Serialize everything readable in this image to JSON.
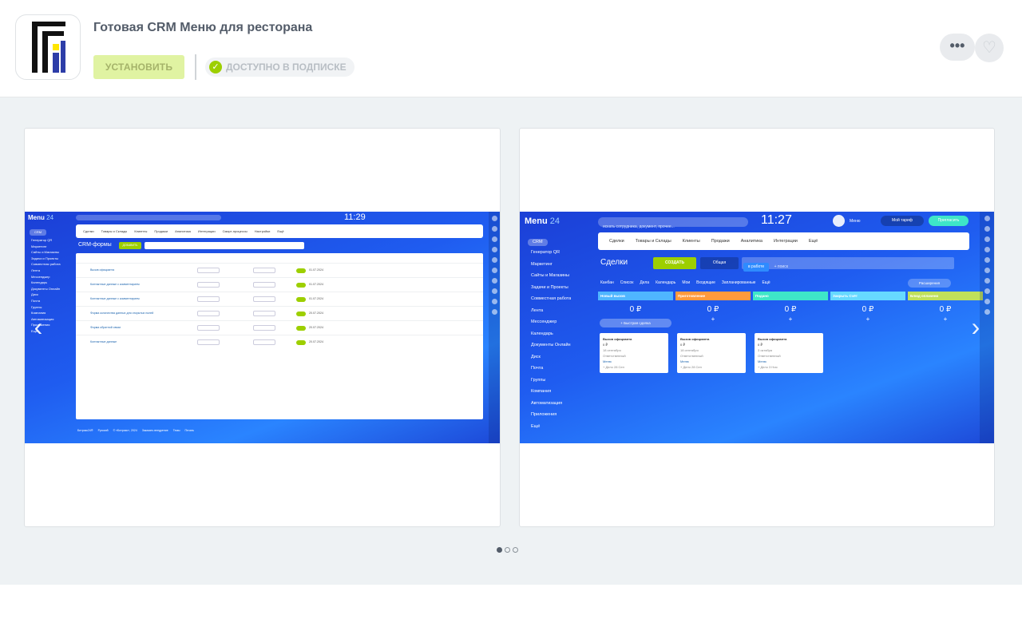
{
  "app": {
    "title": "Готовая CRM Меню для ресторана",
    "install_label": "УСТАНОВИТЬ",
    "subscription_label": "ДОСТУПНО В ПОДПИСКЕ",
    "more_label": "•••",
    "favorite_label": "♡",
    "check_glyph": "✓"
  },
  "colors": {
    "accent_green": "#9dcf00",
    "install_bg": "#e0f3a2",
    "logo_black": "#111111",
    "logo_blue": "#2d3da8",
    "logo_yellow": "#ffe600"
  },
  "gallery": {
    "active_index": 0,
    "dot_count": 3,
    "prev_arrow": "‹",
    "next_arrow": "›"
  },
  "slide1": {
    "logo": "Menu",
    "logo_num": "24",
    "clock": "11:29",
    "menu_tabs": [
      "Сделки",
      "Товары и Склады",
      "Клиенты",
      "Продажи",
      "Аналитика",
      "Интеграции",
      "Смарт-процессы",
      "Настройки",
      "Ещё"
    ],
    "page_title": "CRM-формы",
    "add_button": "ДОБАВИТЬ",
    "sidebar": [
      "CRM",
      "Генератор QR",
      "Маркетинг",
      "Сайты и Магазины",
      "Задачи и Проекты",
      "Совместная работа",
      "Лента",
      "Мессенджер",
      "Календарь",
      "Документы Онлайн",
      "Диск",
      "Почта",
      "Группы",
      "Компания",
      "Автоматизация",
      "Приложения",
      "Ещё"
    ],
    "rows": [
      {
        "name": "Вызов официанта",
        "date": "01.07.2024"
      },
      {
        "name": "Контактные данные с комментарием",
        "date": "01.07.2024"
      },
      {
        "name": "Контактные данные с комментарием",
        "date": "01.07.2024"
      },
      {
        "name": "Форма количества данных для открытых полей",
        "date": "20.07.2024"
      },
      {
        "name": "Форма обратной связи",
        "date": "20.07.2024"
      },
      {
        "name": "Контактные данные",
        "date": "20.07.2024"
      }
    ],
    "footer": [
      "Битрикс24®",
      "Русский",
      "© «Битрикс», 2024",
      "Заказать внедрение",
      "Темы",
      "Печать"
    ]
  },
  "slide2": {
    "logo": "Menu",
    "logo_num": "24",
    "clock": "11:27",
    "search_placeholder": "искать сотрудника, документ, прочее...",
    "user_name": "Меню",
    "tariff": "Мой тариф",
    "invite": "Пригласить",
    "menu_tabs": [
      "Сделки",
      "Товары и Склады",
      "Клиенты",
      "Продажи",
      "Аналитика",
      "Интеграции",
      "Ещё"
    ],
    "page_title": "Сделки",
    "create_button": "СОЗДАТЬ",
    "filter_label": "Общая",
    "stage_filter": "в работе",
    "search_label": "+ поиск",
    "view_tabs": [
      "Канбан",
      "Список",
      "Дела",
      "Календарь"
    ],
    "view_extra": [
      "Мои",
      "Входящие",
      "Запланированные",
      "Ещё"
    ],
    "expand_label": "Расширения",
    "sidebar": [
      "CRM",
      "Генератор QR",
      "Маркетинг",
      "Сайты и Магазины",
      "Задачи и Проекты",
      "Совместная работа",
      "Лента",
      "Мессенджер",
      "Календарь",
      "Документы Онлайн",
      "Диск",
      "Почта",
      "Группы",
      "Компания",
      "Автоматизация",
      "Приложения",
      "Ещё"
    ],
    "columns": [
      {
        "title": "Новый вызов",
        "sum": "0 ₽",
        "color": "#4fb6ff"
      },
      {
        "title": "Приготовление",
        "sum": "0 ₽",
        "color": "#ff9a3c"
      },
      {
        "title": "Подано",
        "sum": "0 ₽",
        "color": "#3ee6c8"
      },
      {
        "title": "Закрыть Счёт",
        "sum": "0 ₽",
        "color": "#66d9ff"
      },
      {
        "title": "Блюд оплачено",
        "sum": "0 ₽",
        "color": "#c0e05a"
      }
    ],
    "quick_deal": "+ Быстрая сделка",
    "cards": [
      {
        "title": "Вызов официанта",
        "sum": "0 ₽",
        "date": "18 сентября",
        "role": "Ответственный",
        "owner": "Меню",
        "action": "+ Дело",
        "meta": "28 Сен"
      },
      {
        "title": "Вызов официанта",
        "sum": "0 ₽",
        "date": "18 сентября",
        "role": "Ответственный",
        "owner": "Меню",
        "action": "+ Дело",
        "meta": "28 Сен"
      },
      {
        "title": "Вызов официанта",
        "sum": "0 ₽",
        "date": "3 октября",
        "role": "Ответственный",
        "owner": "Меню",
        "action": "+ Дело",
        "meta": "3 Ноя"
      }
    ]
  }
}
